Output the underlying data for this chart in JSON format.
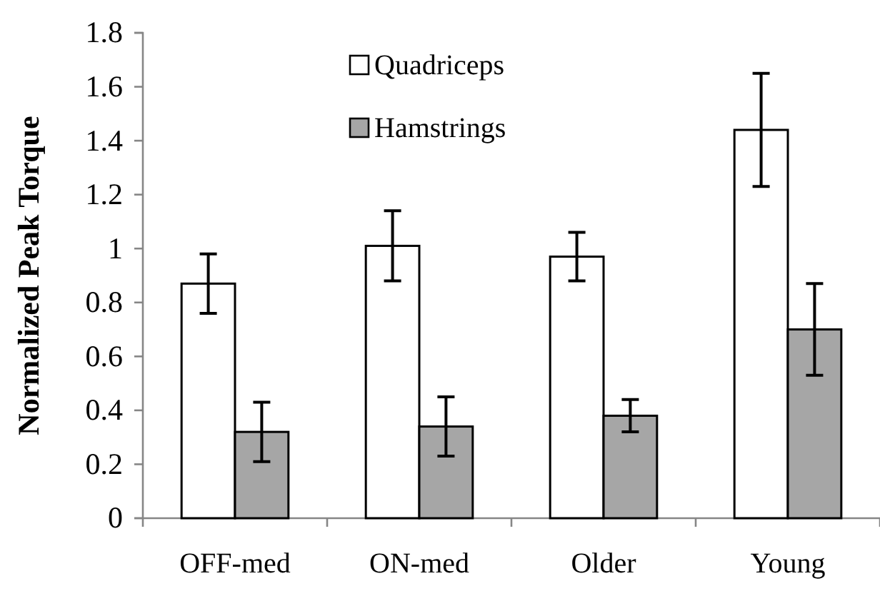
{
  "chart_data": {
    "type": "bar",
    "ylabel": "Normalized Peak Torque",
    "categories": [
      "OFF-med",
      "ON-med",
      "Older",
      "Young"
    ],
    "series": [
      {
        "name": "Quadriceps",
        "color": "#ffffff",
        "values": [
          0.87,
          1.01,
          0.97,
          1.44
        ],
        "errors": [
          0.11,
          0.13,
          0.09,
          0.21
        ]
      },
      {
        "name": "Hamstrings",
        "color": "#a6a6a6",
        "values": [
          0.32,
          0.34,
          0.38,
          0.7
        ],
        "errors": [
          0.11,
          0.11,
          0.06,
          0.17
        ]
      }
    ],
    "ylim": [
      0,
      1.8
    ],
    "yticks": [
      0,
      {
        "value": 0.2,
        "label": "0.2"
      },
      {
        "value": 0.4,
        "label": "0.4"
      },
      {
        "value": 0.6,
        "label": "0.6"
      },
      {
        "value": 0.8,
        "label": "0.8"
      },
      1,
      {
        "value": 1.2,
        "label": "1.2"
      },
      {
        "value": 1.4,
        "label": "1.4"
      },
      {
        "value": 1.6,
        "label": "1.6"
      },
      {
        "value": 1.8,
        "label": "1.8"
      }
    ],
    "grid": false,
    "legend": "top"
  }
}
